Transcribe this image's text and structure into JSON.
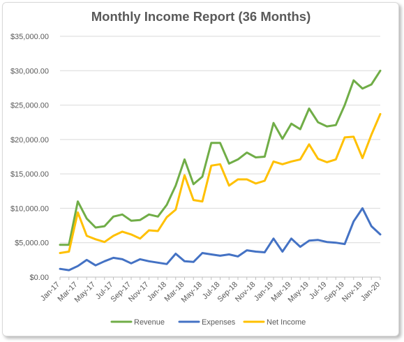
{
  "chart_data": {
    "type": "line",
    "title": "Monthly Income Report (36 Months)",
    "xlabel": "",
    "ylabel": "",
    "x": [
      "Jan-17",
      "Feb-17",
      "Mar-17",
      "Apr-17",
      "May-17",
      "Jun-17",
      "Jul-17",
      "Aug-17",
      "Sep-17",
      "Oct-17",
      "Nov-17",
      "Dec-17",
      "Jan-18",
      "Feb-18",
      "Mar-18",
      "Apr-18",
      "May-18",
      "Jun-18",
      "Jul-18",
      "Aug-18",
      "Sep-18",
      "Oct-18",
      "Nov-18",
      "Dec-18",
      "Jan-19",
      "Feb-19",
      "Mar-19",
      "Apr-19",
      "May-19",
      "Jun-19",
      "Jul-19",
      "Aug-19",
      "Sep-19",
      "Oct-19",
      "Nov-19",
      "Dec-19",
      "Jan-20"
    ],
    "x_tick_labels": [
      "Jan-17",
      "Mar-17",
      "May-17",
      "Jul-17",
      "Sep-17",
      "Nov-17",
      "Jan-18",
      "Mar-18",
      "May-18",
      "Jul-18",
      "Sep-18",
      "Nov-18",
      "Jan-19",
      "Mar-19",
      "May-19",
      "Jul-19",
      "Sep-19",
      "Nov-19",
      "Jan-20"
    ],
    "y_tick_labels": [
      "$0.00",
      "$5,000.00",
      "$10,000.00",
      "$15,000.00",
      "$20,000.00",
      "$25,000.00",
      "$30,000.00",
      "$35,000.00"
    ],
    "ylim": [
      0,
      35000
    ],
    "grid": true,
    "legend_position": "bottom",
    "series": [
      {
        "name": "Revenue",
        "color": "#70ad47",
        "values": [
          4700,
          4700,
          11000,
          8500,
          7200,
          7400,
          8800,
          9100,
          8200,
          8300,
          9100,
          8800,
          10500,
          13300,
          17100,
          13500,
          14600,
          19500,
          19500,
          16500,
          17100,
          18100,
          17400,
          17500,
          22400,
          20100,
          22300,
          21500,
          24500,
          22500,
          21900,
          22100,
          25000,
          28600,
          27400,
          28000,
          30000
        ]
      },
      {
        "name": "Expenses",
        "color": "#4472c4",
        "values": [
          1200,
          1000,
          1600,
          2500,
          1700,
          2300,
          2800,
          2600,
          2000,
          2600,
          2300,
          2100,
          1900,
          3400,
          2300,
          2200,
          3500,
          3300,
          3100,
          3300,
          3000,
          3900,
          3700,
          3600,
          5600,
          3700,
          5600,
          4400,
          5300,
          5400,
          5100,
          5000,
          4800,
          8100,
          10000,
          7400,
          6200
        ]
      },
      {
        "name": "Net Income",
        "color": "#ffc000",
        "values": [
          3500,
          3700,
          9400,
          6000,
          5500,
          5100,
          6000,
          6600,
          6200,
          5600,
          6800,
          6700,
          8700,
          9800,
          14800,
          11200,
          11000,
          16200,
          16400,
          13300,
          14200,
          14200,
          13600,
          14000,
          16800,
          16400,
          16800,
          17100,
          19300,
          17200,
          16700,
          17100,
          20300,
          20400,
          17300,
          20700,
          23700
        ]
      }
    ]
  }
}
